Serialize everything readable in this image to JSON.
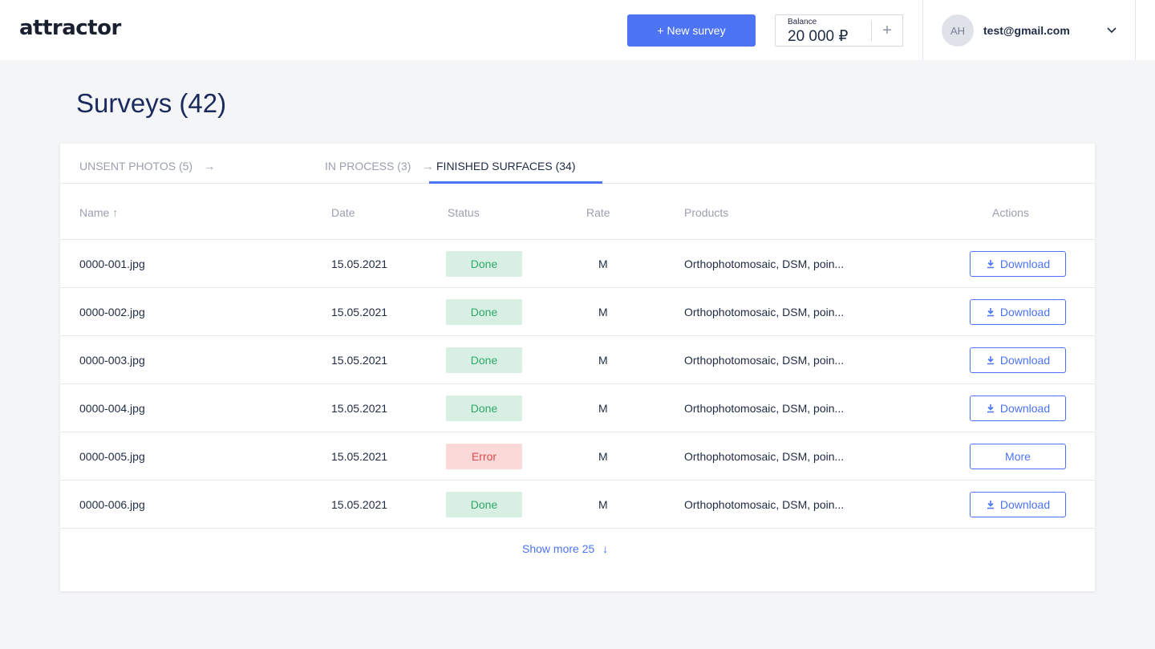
{
  "header": {
    "logo": "attractor",
    "new_survey_label": "+ New survey",
    "balance_label": "Balance",
    "balance_value": "20 000 ₽",
    "balance_add": "+",
    "avatar_initials": "AH",
    "email": "test@gmail.com"
  },
  "page": {
    "title": "Surveys (42)"
  },
  "tabs": [
    {
      "label": "UNSENT PHOTOS (5)"
    },
    {
      "label": "IN PROCESS (3)"
    },
    {
      "label": "FINISHED SURFACES (34)",
      "active": true
    }
  ],
  "table": {
    "headers": {
      "name": "Name ↑",
      "date": "Date",
      "status": "Status",
      "rate": "Rate",
      "products": "Products",
      "actions": "Actions"
    },
    "rows": [
      {
        "name": "0000-001.jpg",
        "date": "15.05.2021",
        "status": "Done",
        "rate": "M",
        "products": "Orthophotomosaic, DSM, poin...",
        "action": "Download"
      },
      {
        "name": "0000-002.jpg",
        "date": "15.05.2021",
        "status": "Done",
        "rate": "M",
        "products": "Orthophotomosaic, DSM, poin...",
        "action": "Download"
      },
      {
        "name": "0000-003.jpg",
        "date": "15.05.2021",
        "status": "Done",
        "rate": "M",
        "products": "Orthophotomosaic, DSM, poin...",
        "action": "Download"
      },
      {
        "name": "0000-004.jpg",
        "date": "15.05.2021",
        "status": "Done",
        "rate": "M",
        "products": "Orthophotomosaic, DSM, poin...",
        "action": "Download"
      },
      {
        "name": "0000-005.jpg",
        "date": "15.05.2021",
        "status": "Error",
        "rate": "M",
        "products": "Orthophotomosaic, DSM, poin...",
        "action": "More"
      },
      {
        "name": "0000-006.jpg",
        "date": "15.05.2021",
        "status": "Done",
        "rate": "M",
        "products": "Orthophotomosaic, DSM, poin...",
        "action": "Download"
      }
    ],
    "show_more": "Show more 25"
  },
  "colors": {
    "accent": "#4c74f5",
    "done_bg": "#d8f0e3",
    "done_text": "#2fa86a",
    "error_bg": "#fcd9d9",
    "error_text": "#e04848",
    "title": "#1b2a5c"
  }
}
